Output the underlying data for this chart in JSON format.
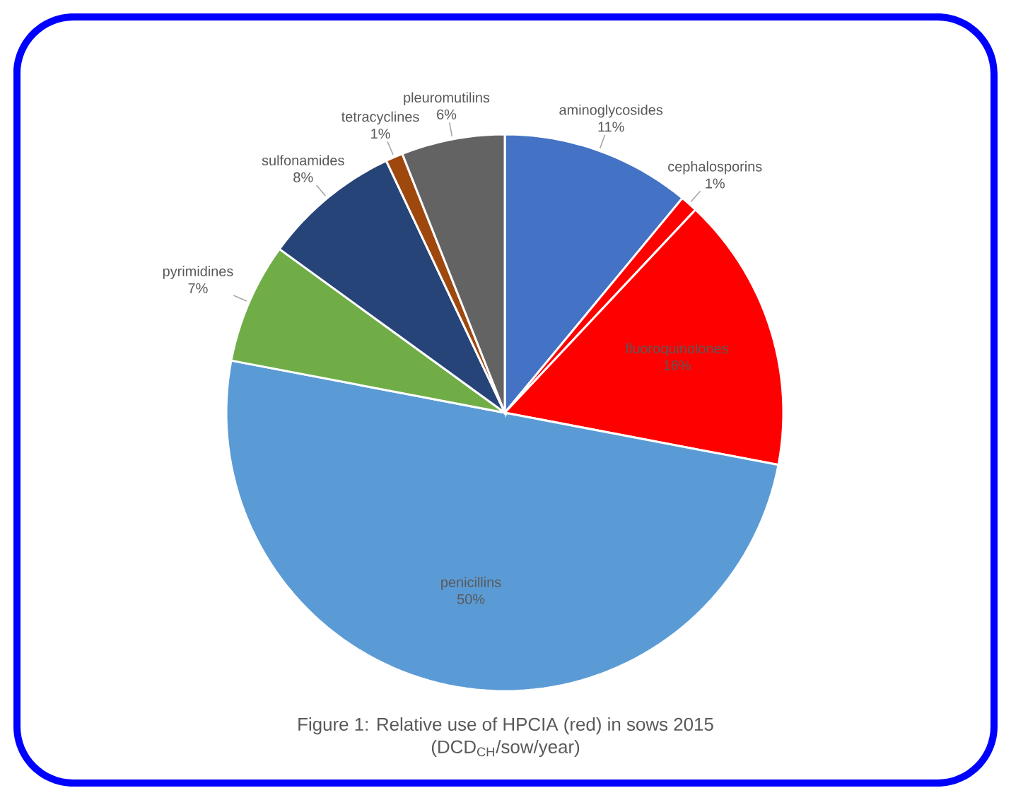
{
  "chart_data": {
    "type": "pie",
    "title": "Figure 1: Relative use of HPCIA (red) in sows 2015",
    "subtitle": "(DCD$_{CH}$/sow/year)",
    "categories": [
      "aminoglycosides",
      "cephalosporins",
      "fluoroquinolones",
      "penicillins",
      "pyrimidines",
      "sulfonamides",
      "tetracyclines",
      "pleuromutilins"
    ],
    "values": [
      11,
      1,
      16,
      50,
      7,
      8,
      1,
      6
    ],
    "value_labels": [
      "11%",
      "1%",
      "16%",
      "50%",
      "7%",
      "8%",
      "1%",
      "6%"
    ],
    "colors": [
      "#4472c4",
      "#ff0000",
      "#ff0000",
      "#5b9bd5",
      "#70ad47",
      "#264478",
      "#9e480e",
      "#636363"
    ]
  }
}
